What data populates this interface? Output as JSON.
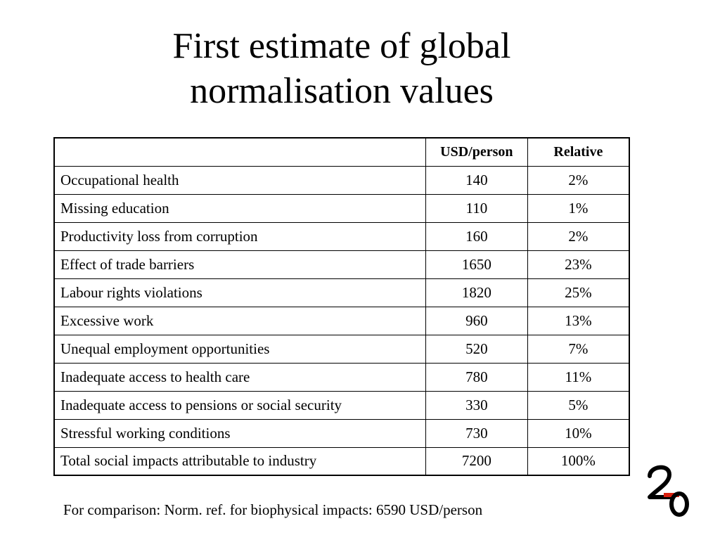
{
  "title": {
    "line1": "First estimate of global",
    "line2": "normalisation values"
  },
  "table": {
    "headers": [
      "",
      "USD/person",
      "Relative"
    ],
    "rows": [
      {
        "label": "Occupational health",
        "usd": "140",
        "relative": "2%"
      },
      {
        "label": "Missing education",
        "usd": "110",
        "relative": "1%"
      },
      {
        "label": "Productivity loss from corruption",
        "usd": "160",
        "relative": "2%"
      },
      {
        "label": "Effect of trade barriers",
        "usd": "1650",
        "relative": "23%"
      },
      {
        "label": "Labour rights violations",
        "usd": "1820",
        "relative": "25%"
      },
      {
        "label": "Excessive work",
        "usd": "960",
        "relative": "13%"
      },
      {
        "label": "Unequal employment opportunities",
        "usd": "520",
        "relative": "7%"
      },
      {
        "label": "Inadequate access to health care",
        "usd": "780",
        "relative": "11%"
      },
      {
        "label": "Inadequate access to pensions or social security",
        "usd": "330",
        "relative": "5%"
      },
      {
        "label": "Stressful working conditions",
        "usd": "730",
        "relative": "10%"
      },
      {
        "label": "Total social impacts attributable to industry",
        "usd": "7200",
        "relative": "100%"
      }
    ]
  },
  "footnote": "For comparison: Norm. ref. for biophysical impacts: 6590 USD/person",
  "logo": {
    "name": "2-0-logo",
    "text": "2-0",
    "accent_color": "#d9200f"
  }
}
